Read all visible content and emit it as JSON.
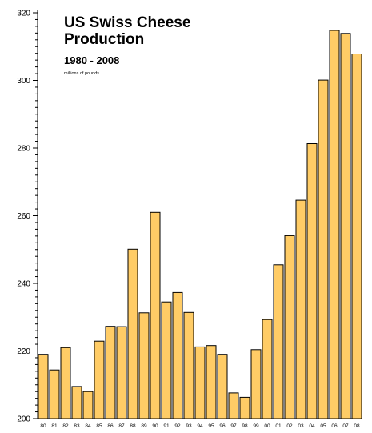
{
  "chart_data": {
    "type": "bar",
    "title": "US Swiss Cheese",
    "title_line2": "Production",
    "subtitle": "1980 - 2008",
    "unit_note": "millions of pounds",
    "categories": [
      "80",
      "81",
      "82",
      "83",
      "84",
      "85",
      "86",
      "87",
      "88",
      "89",
      "90",
      "91",
      "92",
      "93",
      "94",
      "95",
      "96",
      "97",
      "98",
      "99",
      "00",
      "01",
      "02",
      "03",
      "04",
      "05",
      "06",
      "07",
      "08"
    ],
    "values": [
      219.0,
      214.4,
      221.0,
      209.5,
      208.0,
      222.9,
      227.3,
      227.2,
      250.1,
      231.3,
      261.0,
      234.5,
      237.3,
      231.4,
      221.2,
      221.6,
      219.0,
      207.6,
      206.3,
      220.4,
      229.3,
      245.5,
      254.1,
      264.6,
      281.3,
      300.1,
      314.8,
      313.9,
      307.8
    ],
    "ylim": [
      200,
      320
    ],
    "yticks": [
      200,
      220,
      240,
      260,
      280,
      300,
      320
    ],
    "ytick_labels": [
      "200",
      "220",
      "240",
      "260",
      "280",
      "300",
      "320"
    ],
    "ylabel": "",
    "xlabel": "",
    "grid": false,
    "bar_color": "#FFCC66",
    "bar_edge_color": "#000000"
  }
}
